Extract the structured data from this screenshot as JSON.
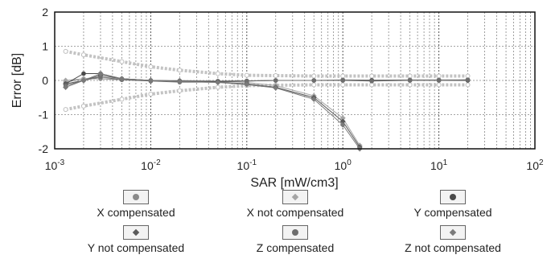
{
  "chart_data": {
    "type": "scatter",
    "title": "",
    "xlabel": "SAR [mW/cm3]",
    "ylabel": "Error [dB]",
    "x_scale": "log",
    "xlim": [
      0.001,
      100
    ],
    "ylim": [
      -2,
      2
    ],
    "grid": true,
    "x_tick_labels": [
      {
        "base": "10",
        "exp": "-3"
      },
      {
        "base": "10",
        "exp": "-2"
      },
      {
        "base": "10",
        "exp": "-1"
      },
      {
        "base": "10",
        "exp": "0"
      },
      {
        "base": "10",
        "exp": "1"
      },
      {
        "base": "10",
        "exp": "2"
      }
    ],
    "y_tick_labels": [
      "2",
      "1",
      "0",
      "-1",
      "-2"
    ],
    "y_ticks": [
      2,
      1,
      0,
      -1,
      -2
    ],
    "legend_position": "bottom",
    "series": [
      {
        "name": "X compensated",
        "marker": "circle",
        "color": "#8a8a8a",
        "x": [
          0.0013,
          0.002,
          0.003,
          0.005,
          0.01,
          0.02,
          0.05,
          0.1,
          0.2,
          0.5,
          1,
          2,
          5,
          10,
          20
        ],
        "y": [
          -0.05,
          0.05,
          0.05,
          0.02,
          0.0,
          -0.02,
          -0.02,
          -0.01,
          0.0,
          0.0,
          0.02,
          0.01,
          0.02,
          0.02,
          0.02
        ]
      },
      {
        "name": "X not compensated",
        "marker": "diamond",
        "color": "#a5a5a5",
        "x": [
          0.0013,
          0.002,
          0.003,
          0.005,
          0.01,
          0.02,
          0.05,
          0.1,
          0.2,
          0.5,
          1,
          1.5
        ],
        "y": [
          0.0,
          0.05,
          0.1,
          0.05,
          0.0,
          0.0,
          -0.02,
          -0.06,
          -0.15,
          -0.45,
          -1.1,
          -1.9
        ]
      },
      {
        "name": "Y compensated",
        "marker": "circle",
        "color": "#4a4a4a",
        "x": [
          0.0013,
          0.002,
          0.003,
          0.005,
          0.01,
          0.02,
          0.05,
          0.1,
          0.2,
          0.5,
          1,
          2,
          5,
          10,
          20
        ],
        "y": [
          -0.1,
          0.2,
          0.2,
          0.05,
          0.0,
          -0.02,
          -0.03,
          -0.02,
          0.0,
          0.0,
          0.0,
          0.0,
          0.0,
          0.0,
          0.0
        ]
      },
      {
        "name": "Y not compensated",
        "marker": "diamond",
        "color": "#5a5a5a",
        "x": [
          0.0013,
          0.002,
          0.003,
          0.005,
          0.01,
          0.02,
          0.05,
          0.1,
          0.2,
          0.5,
          1,
          1.5
        ],
        "y": [
          -0.1,
          0.0,
          0.15,
          0.05,
          0.0,
          -0.02,
          -0.05,
          -0.1,
          -0.2,
          -0.5,
          -1.2,
          -1.95
        ]
      },
      {
        "name": "Z compensated",
        "marker": "circle",
        "color": "#6e6e6e",
        "x": [
          0.0013,
          0.002,
          0.003,
          0.005,
          0.01,
          0.02,
          0.05,
          0.1,
          0.2,
          0.5,
          1,
          2,
          5,
          10,
          20
        ],
        "y": [
          -0.15,
          0.0,
          0.1,
          0.02,
          -0.02,
          -0.05,
          -0.05,
          -0.02,
          0.0,
          0.0,
          0.0,
          -0.02,
          0.0,
          0.0,
          0.02
        ]
      },
      {
        "name": "Z not compensated",
        "marker": "diamond",
        "color": "#7a7a7a",
        "x": [
          0.0013,
          0.002,
          0.003,
          0.005,
          0.01,
          0.02,
          0.05,
          0.1,
          0.2,
          0.5,
          1,
          1.5
        ],
        "y": [
          -0.2,
          0.0,
          0.2,
          0.05,
          0.0,
          -0.03,
          -0.06,
          -0.12,
          -0.22,
          -0.55,
          -1.3,
          -2.0
        ]
      }
    ],
    "uncertainty_band": {
      "x": [
        0.0013,
        0.002,
        0.005,
        0.01,
        0.02,
        0.05,
        0.1,
        0.2,
        0.5,
        1,
        2,
        5,
        10,
        20
      ],
      "upper": [
        0.85,
        0.75,
        0.55,
        0.4,
        0.3,
        0.2,
        0.15,
        0.14,
        0.13,
        0.13,
        0.13,
        0.13,
        0.13,
        0.13
      ],
      "lower": [
        -0.85,
        -0.75,
        -0.55,
        -0.4,
        -0.3,
        -0.2,
        -0.15,
        -0.14,
        -0.13,
        -0.13,
        -0.13,
        -0.13,
        -0.13,
        -0.13
      ],
      "color": "#bdbdbd"
    }
  }
}
